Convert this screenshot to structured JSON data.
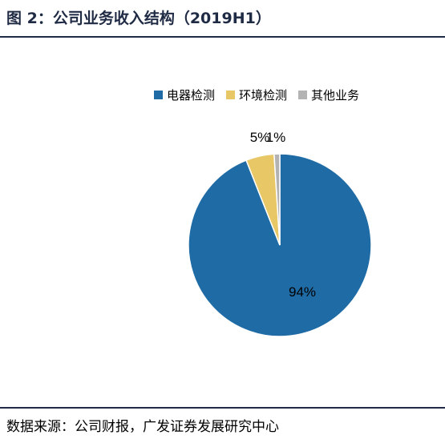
{
  "header": {
    "title": "图 2：公司业务收入结构（2019H1）"
  },
  "footer": {
    "source": "数据来源：公司财报，广发证券发展研究中心"
  },
  "colors": {
    "rule": "#1f2a44"
  },
  "chart_data": {
    "type": "pie",
    "title": "",
    "categories": [
      "电器检测",
      "环境检测",
      "其他业务"
    ],
    "values": [
      94,
      5,
      1
    ],
    "labels": [
      "94%",
      "5%",
      "1%"
    ],
    "colors": [
      "#1f6ba5",
      "#e8c766",
      "#b3b3b3"
    ],
    "legend": {
      "placement": "top-right"
    }
  }
}
